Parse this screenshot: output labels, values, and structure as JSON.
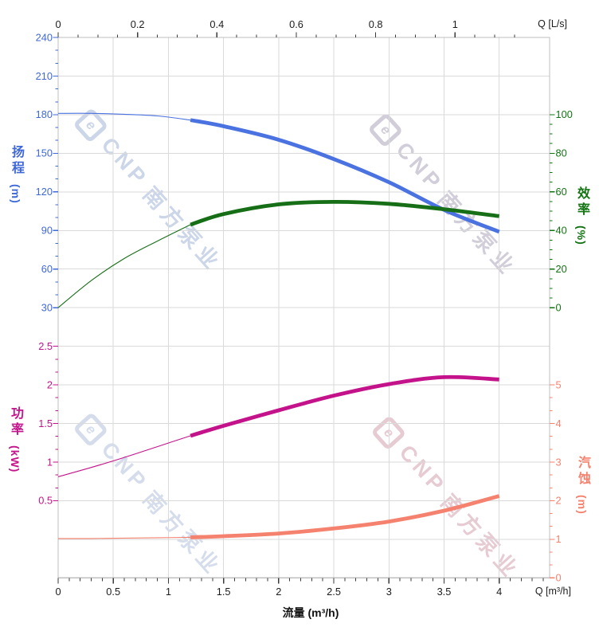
{
  "brand": {
    "logo_text": "e",
    "name": "CNP",
    "name_cn": "南方泵业"
  },
  "watermarks": {
    "colors": [
      "#c4cfe6",
      "#c9c6d4",
      "#ced8ea",
      "#e3c3cc"
    ]
  },
  "top_axis": {
    "unit_label": "Q [L/s]",
    "labels": [
      "0",
      "0.2",
      "0.4",
      "0.6",
      "0.8",
      "1"
    ]
  },
  "bottom_axis": {
    "unit_label": "Q [m³/h]",
    "title": "流量 (m³/h)",
    "labels": [
      "0",
      "0.5",
      "1",
      "1.5",
      "2",
      "2.5",
      "3",
      "3.5",
      "4"
    ]
  },
  "y_axes": {
    "head": {
      "name": "扬程",
      "unit": "(m)",
      "color": "#3f68d9",
      "labels": [
        "240",
        "210",
        "180",
        "150",
        "120",
        "90",
        "60",
        "30"
      ]
    },
    "efficiency": {
      "name": "效率",
      "unit": "(%)",
      "color": "#127312",
      "labels": [
        "100",
        "80",
        "60",
        "40",
        "20",
        "0"
      ]
    },
    "power": {
      "name": "功率",
      "unit": "(kW)",
      "color": "#c4138a",
      "labels": [
        "2.5",
        "2",
        "1.5",
        "1",
        "0.5"
      ]
    },
    "npsh": {
      "name": "汽蚀",
      "unit": "(m)",
      "color": "#f5826e",
      "labels": [
        "5",
        "4",
        "3",
        "2",
        "1",
        "0"
      ]
    }
  },
  "colors": {
    "grid": "#dadada",
    "frame": "#bfbfbf",
    "axis_text": "#1c1c1c",
    "xy_tick": "#3a3a3a",
    "head_curve": "#4a72e0",
    "efficiency_curve": "#166f16",
    "power_curve": "#c4138a",
    "npsh_curve": "#f5826e"
  },
  "chart_data": {
    "type": "line",
    "title": "",
    "xlabel": "流量 (m³/h)",
    "x_secondary_label": "Q [L/s]",
    "x_range_m3h": [
      0,
      4.46
    ],
    "x_ticks_m3h": [
      0,
      0.5,
      1,
      1.5,
      2,
      2.5,
      3,
      3.5,
      4
    ],
    "x_secondary_ticks_Ls": [
      0,
      0.2,
      0.4,
      0.6,
      0.8,
      1
    ],
    "grid": true,
    "panels": [
      {
        "position": "top",
        "left_axis": "扬程 (m) 30–240",
        "right_axis": "效率 (%) 0–100"
      },
      {
        "position": "bottom",
        "left_axis": "功率 (kW) 0.5–2.5",
        "right_axis": "汽蚀 (m) 0–5"
      }
    ],
    "series": [
      {
        "id": "head",
        "name": "扬程",
        "unit": "m",
        "color": "#4a72e0",
        "thick_from": 1.2,
        "points": [
          [
            0,
            181
          ],
          [
            0.3,
            181
          ],
          [
            0.6,
            180.3
          ],
          [
            0.9,
            179
          ],
          [
            1.2,
            175.8
          ],
          [
            1.5,
            171
          ],
          [
            2,
            160.5
          ],
          [
            2.5,
            145.5
          ],
          [
            3,
            127.5
          ],
          [
            3.5,
            106
          ],
          [
            4,
            89
          ]
        ]
      },
      {
        "id": "efficiency",
        "name": "效率",
        "unit": "%",
        "color": "#166f16",
        "thick_from": 1.2,
        "points": [
          [
            0,
            0
          ],
          [
            0.3,
            14
          ],
          [
            0.6,
            25.5
          ],
          [
            0.9,
            34.5
          ],
          [
            1.2,
            43
          ],
          [
            1.5,
            48.5
          ],
          [
            2,
            53.5
          ],
          [
            2.5,
            54.8
          ],
          [
            3,
            53.8
          ],
          [
            3.5,
            51
          ],
          [
            4,
            47.4
          ]
        ]
      },
      {
        "id": "power",
        "name": "功率",
        "unit": "kW",
        "color": "#c4138a",
        "thick_from": 1.2,
        "points": [
          [
            0,
            0.81
          ],
          [
            0.3,
            0.93
          ],
          [
            0.6,
            1.06
          ],
          [
            0.9,
            1.2
          ],
          [
            1.2,
            1.34
          ],
          [
            1.5,
            1.47
          ],
          [
            2,
            1.67
          ],
          [
            2.5,
            1.86
          ],
          [
            3,
            2.01
          ],
          [
            3.5,
            2.1
          ],
          [
            4,
            2.07
          ]
        ]
      },
      {
        "id": "npsh",
        "name": "汽蚀",
        "unit": "m",
        "color": "#f5826e",
        "thick_from": 1.2,
        "points": [
          [
            0,
            1.02
          ],
          [
            0.3,
            1.02
          ],
          [
            0.6,
            1.03
          ],
          [
            0.9,
            1.04
          ],
          [
            1.2,
            1.05
          ],
          [
            1.5,
            1.08
          ],
          [
            2,
            1.15
          ],
          [
            2.5,
            1.28
          ],
          [
            3,
            1.46
          ],
          [
            3.5,
            1.74
          ],
          [
            4,
            2.12
          ]
        ]
      }
    ]
  }
}
